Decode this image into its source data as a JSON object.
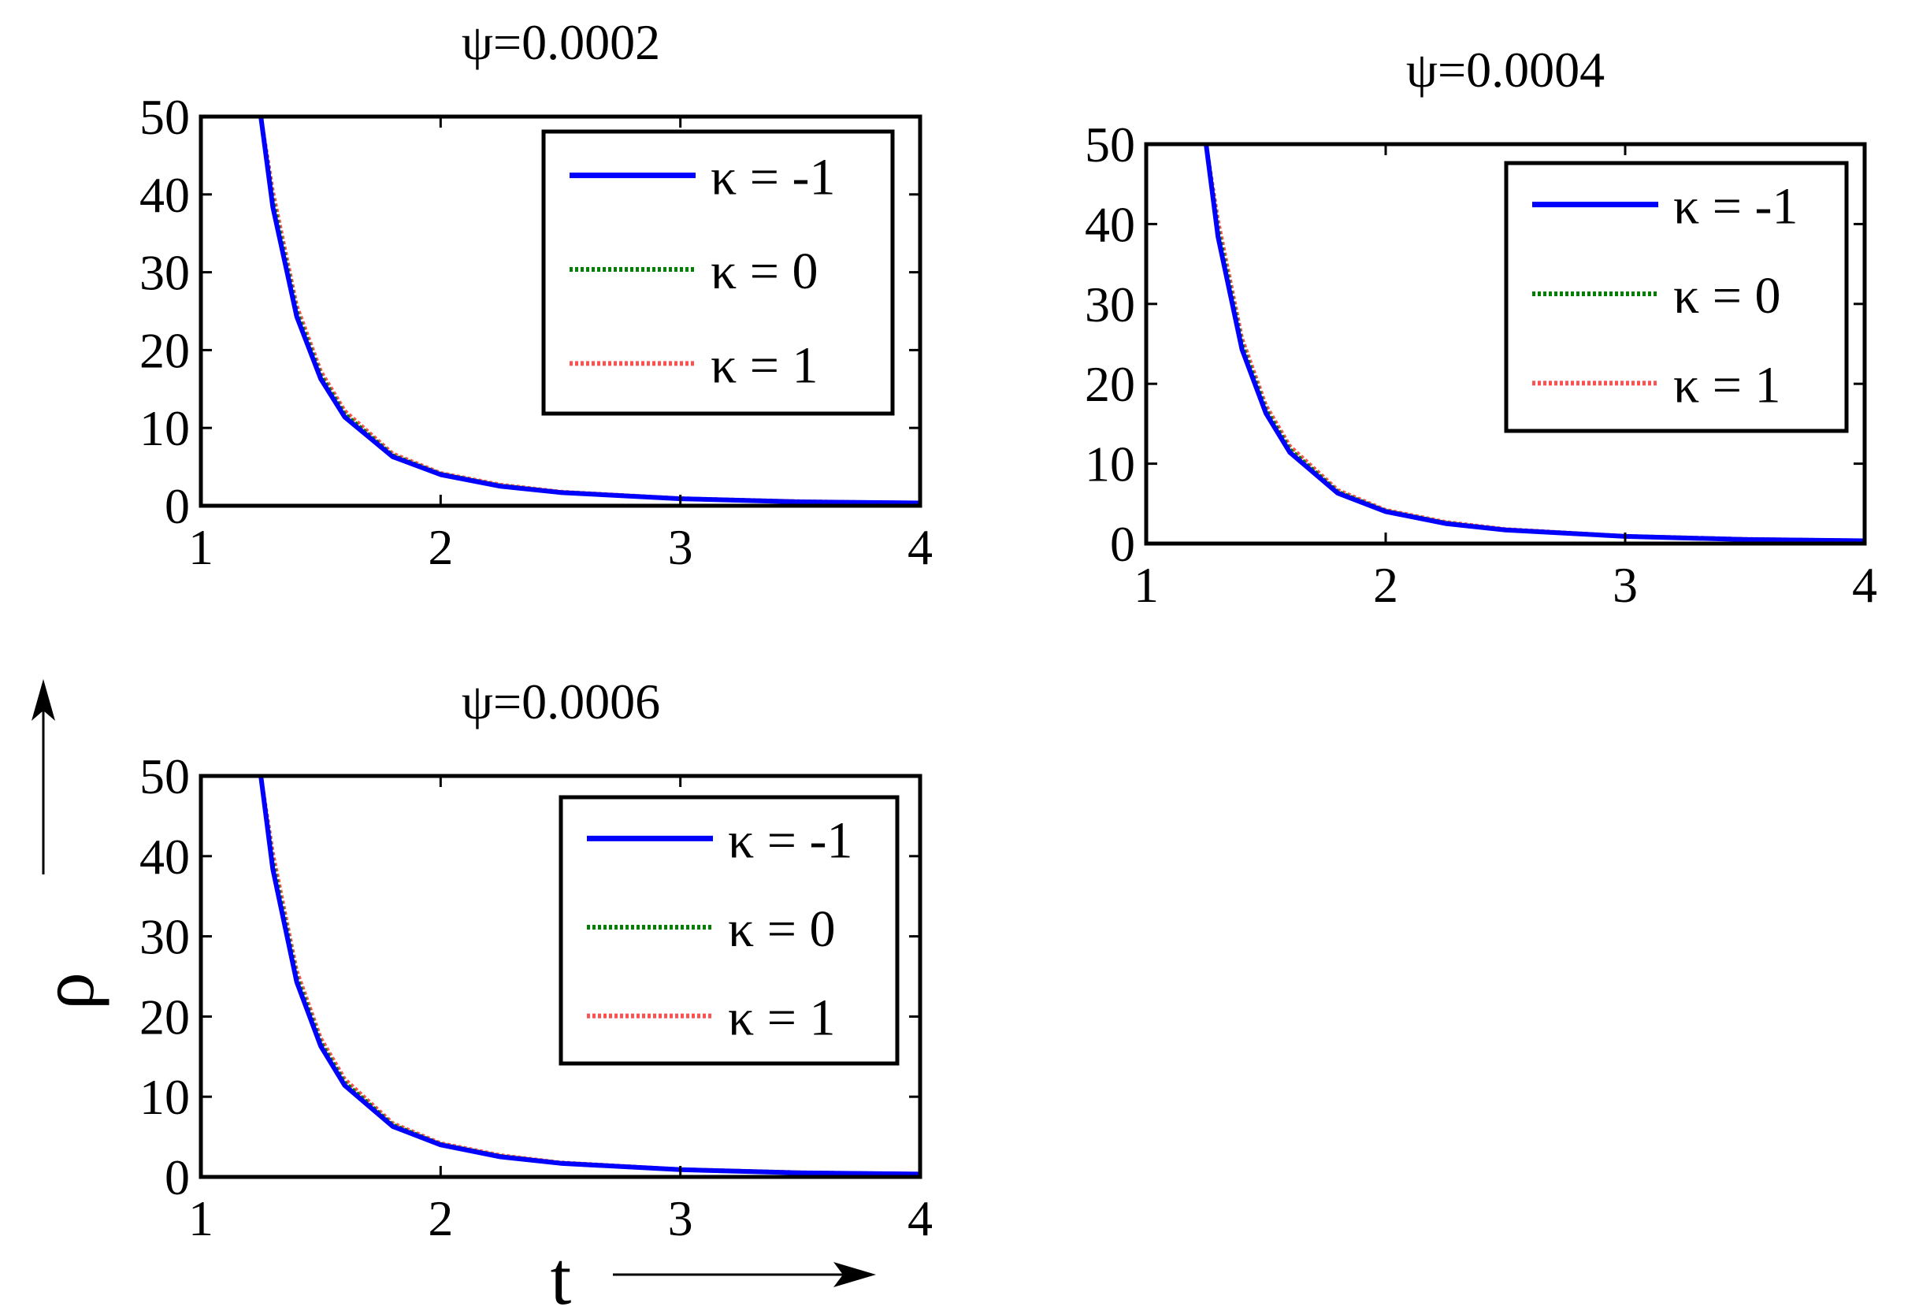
{
  "figure": {
    "xlabel": "t",
    "ylabel": "ρ",
    "colors": {
      "k_minus1": "#0000ff",
      "k_0": "#007f00",
      "k_1": "#ff5050",
      "axes": "#000000"
    }
  },
  "chart_data": [
    {
      "type": "line",
      "title": "ψ=0.0002",
      "xlim": [
        1,
        4
      ],
      "ylim": [
        0,
        50
      ],
      "xticks": [
        "1",
        "2",
        "3",
        "4"
      ],
      "yticks": [
        "0",
        "10",
        "20",
        "30",
        "40",
        "50"
      ],
      "legend_position": "top-right",
      "x": [
        1.25,
        1.3,
        1.4,
        1.5,
        1.6,
        1.8,
        2.0,
        2.25,
        2.5,
        3.0,
        3.5,
        4.0
      ],
      "series": [
        {
          "name": "κ = -1",
          "color": "#0000ff",
          "style": "solid",
          "values": [
            50.0,
            38.4,
            24.3,
            16.3,
            11.4,
            6.3,
            4.0,
            2.5,
            1.7,
            0.9,
            0.5,
            0.35
          ]
        },
        {
          "name": "κ = 0",
          "color": "#007f00",
          "style": "dotted",
          "values": [
            50.0,
            39.4,
            25.0,
            16.8,
            11.8,
            6.5,
            4.1,
            2.6,
            1.75,
            0.93,
            0.55,
            0.36
          ]
        },
        {
          "name": "κ = 1",
          "color": "#ff5050",
          "style": "dotted",
          "values": [
            50.0,
            40.4,
            25.7,
            17.3,
            12.2,
            6.7,
            4.2,
            2.7,
            1.8,
            0.95,
            0.57,
            0.37
          ]
        }
      ]
    },
    {
      "type": "line",
      "title": "ψ=0.0004",
      "xlim": [
        1,
        4
      ],
      "ylim": [
        0,
        50
      ],
      "xticks": [
        "1",
        "2",
        "3",
        "4"
      ],
      "yticks": [
        "0",
        "10",
        "20",
        "30",
        "40",
        "50"
      ],
      "legend_position": "top-right",
      "x": [
        1.25,
        1.3,
        1.4,
        1.5,
        1.6,
        1.8,
        2.0,
        2.25,
        2.5,
        3.0,
        3.5,
        4.0
      ],
      "series": [
        {
          "name": "κ = -1",
          "color": "#0000ff",
          "style": "solid",
          "values": [
            50.0,
            38.4,
            24.3,
            16.3,
            11.4,
            6.3,
            4.0,
            2.5,
            1.7,
            0.9,
            0.5,
            0.35
          ]
        },
        {
          "name": "κ = 0",
          "color": "#007f00",
          "style": "dotted",
          "values": [
            50.0,
            39.4,
            25.0,
            16.8,
            11.8,
            6.5,
            4.1,
            2.6,
            1.75,
            0.93,
            0.55,
            0.36
          ]
        },
        {
          "name": "κ = 1",
          "color": "#ff5050",
          "style": "dotted",
          "values": [
            50.0,
            40.4,
            25.7,
            17.3,
            12.2,
            6.7,
            4.2,
            2.7,
            1.8,
            0.95,
            0.57,
            0.37
          ]
        }
      ]
    },
    {
      "type": "line",
      "title": "ψ=0.0006",
      "xlim": [
        1,
        4
      ],
      "ylim": [
        0,
        50
      ],
      "xticks": [
        "1",
        "2",
        "3",
        "4"
      ],
      "yticks": [
        "0",
        "10",
        "20",
        "30",
        "40",
        "50"
      ],
      "legend_position": "top-right",
      "x": [
        1.25,
        1.3,
        1.4,
        1.5,
        1.6,
        1.8,
        2.0,
        2.25,
        2.5,
        3.0,
        3.5,
        4.0
      ],
      "series": [
        {
          "name": "κ = -1",
          "color": "#0000ff",
          "style": "solid",
          "values": [
            50.0,
            38.4,
            24.3,
            16.3,
            11.4,
            6.3,
            4.0,
            2.5,
            1.7,
            0.9,
            0.5,
            0.35
          ]
        },
        {
          "name": "κ = 0",
          "color": "#007f00",
          "style": "dotted",
          "values": [
            50.0,
            39.4,
            25.0,
            16.8,
            11.8,
            6.5,
            4.1,
            2.6,
            1.75,
            0.93,
            0.55,
            0.36
          ]
        },
        {
          "name": "κ = 1",
          "color": "#ff5050",
          "style": "dotted",
          "values": [
            50.0,
            40.4,
            25.7,
            17.3,
            12.2,
            6.7,
            4.2,
            2.7,
            1.8,
            0.95,
            0.57,
            0.37
          ]
        }
      ]
    }
  ]
}
